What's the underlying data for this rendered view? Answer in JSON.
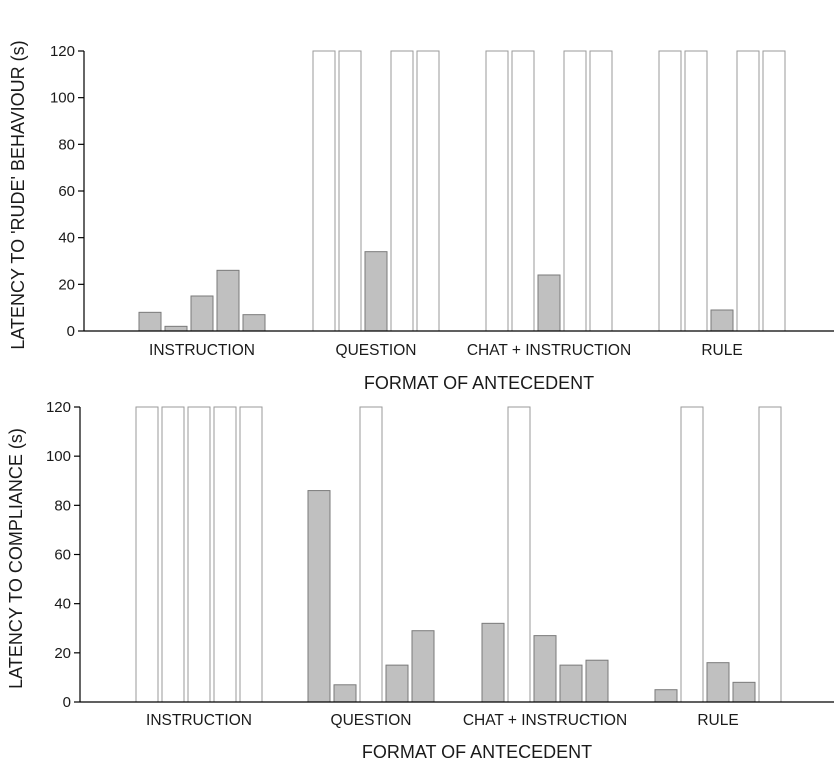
{
  "chart_data": [
    {
      "type": "bar",
      "categories": [
        "INSTRUCTION",
        "QUESTION",
        "CHAT + INSTRUCTION",
        "RULE"
      ],
      "series": [
        {
          "values": [
            8,
            120,
            120,
            120
          ]
        },
        {
          "values": [
            2,
            120,
            120,
            120
          ]
        },
        {
          "values": [
            15,
            34,
            24,
            9
          ]
        },
        {
          "values": [
            26,
            120,
            120,
            120
          ]
        },
        {
          "values": [
            7,
            120,
            120,
            120
          ]
        }
      ],
      "censored_value": 120,
      "bar_colors": {
        "observed": "#c0c0c0",
        "censored": "#ffffff"
      },
      "xlabel": "FORMAT OF ANTECEDENT",
      "ylabel": "LATENCY TO 'RUDE' BEHAVIOUR (s)",
      "ylim": [
        0,
        120
      ],
      "yticks": [
        "0",
        "20",
        "40",
        "60",
        "80",
        "100",
        "120"
      ],
      "grid": false
    },
    {
      "type": "bar",
      "categories": [
        "INSTRUCTION",
        "QUESTION",
        "CHAT + INSTRUCTION",
        "RULE"
      ],
      "series": [
        {
          "values": [
            120,
            86,
            32,
            5
          ]
        },
        {
          "values": [
            120,
            7,
            120,
            120
          ]
        },
        {
          "values": [
            120,
            120,
            27,
            16
          ]
        },
        {
          "values": [
            120,
            15,
            15,
            8
          ]
        },
        {
          "values": [
            120,
            29,
            17,
            120
          ]
        }
      ],
      "censored_value": 120,
      "bar_colors": {
        "observed": "#c0c0c0",
        "censored": "#ffffff"
      },
      "xlabel": "FORMAT OF ANTECEDENT",
      "ylabel": "LATENCY TO COMPLIANCE (s)",
      "ylim": [
        0,
        120
      ],
      "yticks": [
        "0",
        "20",
        "40",
        "60",
        "80",
        "100",
        "120"
      ],
      "grid": false
    }
  ]
}
